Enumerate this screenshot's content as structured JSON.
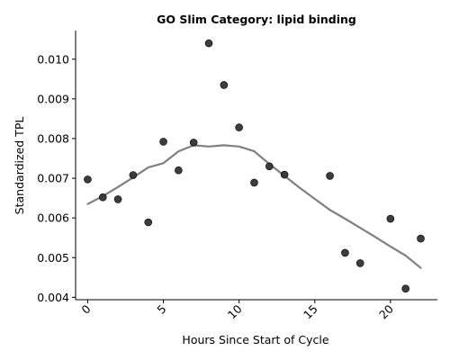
{
  "chart_data": {
    "type": "scatter",
    "title": "GO Slim Category: lipid binding",
    "xlabel": "Hours Since Start of Cycle",
    "ylabel": "Standardized TPL",
    "xlim": [
      -0.8,
      23.1
    ],
    "ylim": [
      0.00394,
      0.01072
    ],
    "xticks": [
      0,
      5,
      10,
      15,
      20
    ],
    "xtick_labels": [
      "0",
      "5",
      "10",
      "15",
      "20"
    ],
    "xtick_rotation": 45,
    "yticks": [
      0.004,
      0.005,
      0.006,
      0.007,
      0.008,
      0.009,
      0.01
    ],
    "ytick_labels": [
      "0.004",
      "0.005",
      "0.006",
      "0.007",
      "0.008",
      "0.009",
      "0.010"
    ],
    "grid": false,
    "points_color": "#333333",
    "trend_color": "#808080",
    "series": [
      {
        "kind": "points",
        "x": [
          0,
          1,
          2,
          3,
          4,
          5,
          6,
          7,
          8,
          9,
          10,
          11,
          12,
          13,
          16,
          17,
          18,
          20,
          21,
          22
        ],
        "y": [
          0.00697,
          0.00652,
          0.00647,
          0.00708,
          0.00589,
          0.00792,
          0.0072,
          0.0079,
          0.0104,
          0.00935,
          0.00828,
          0.00689,
          0.0073,
          0.00709,
          0.00706,
          0.00512,
          0.00486,
          0.00598,
          0.00422,
          0.00548
        ]
      },
      {
        "kind": "trend-line",
        "x": [
          0,
          1,
          2,
          3,
          4,
          5,
          6,
          7,
          8,
          9,
          10,
          11,
          12,
          13,
          14,
          15,
          16,
          17,
          18,
          19,
          20,
          21,
          22
        ],
        "y": [
          0.00635,
          0.00655,
          0.00678,
          0.00702,
          0.00727,
          0.00738,
          0.00768,
          0.00783,
          0.0078,
          0.00783,
          0.0078,
          0.00768,
          0.00736,
          0.00706,
          0.00676,
          0.00648,
          0.0062,
          0.00598,
          0.00575,
          0.00552,
          0.00528,
          0.00505,
          0.00474
        ]
      }
    ]
  }
}
